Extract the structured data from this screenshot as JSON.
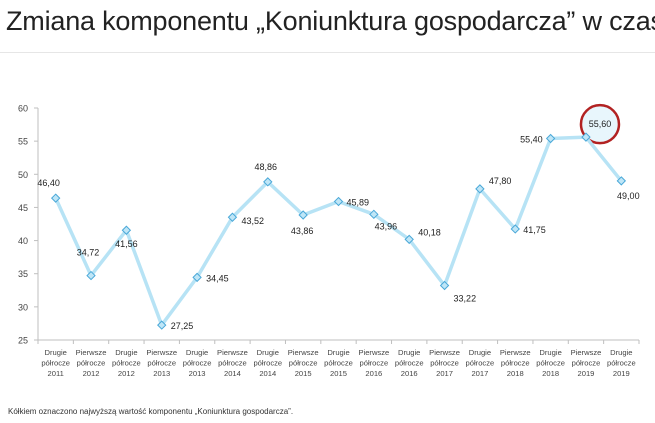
{
  "title": "Zmiana komponentu „Koniunktura gospodarcza” w czasie",
  "footnote": "Kółkiem oznaczono najwyższą wartość komponentu „Koniunktura gospodarcza”.",
  "chart_data": {
    "type": "line",
    "title": "",
    "xlabel": "",
    "ylabel": "",
    "ylim": [
      25,
      60
    ],
    "yticks": [
      "25",
      "30",
      "35",
      "40",
      "45",
      "50",
      "55",
      "60"
    ],
    "grid": false,
    "categories": [
      [
        "Drugie",
        "półrocze",
        "2011"
      ],
      [
        "Pierwsze",
        "półrocze",
        "2012"
      ],
      [
        "Drugie",
        "półrocze",
        "2012"
      ],
      [
        "Pierwsze",
        "półrocze",
        "2013"
      ],
      [
        "Drugie",
        "półrocze",
        "2013"
      ],
      [
        "Pierwsze",
        "półrocze",
        "2014"
      ],
      [
        "Drugie",
        "półrocze",
        "2014"
      ],
      [
        "Pierwsze",
        "półrocze",
        "2015"
      ],
      [
        "Drugie",
        "półrocze",
        "2015"
      ],
      [
        "Pierwsze",
        "półrocze",
        "2016"
      ],
      [
        "Drugie",
        "półrocze",
        "2016"
      ],
      [
        "Pierwsze",
        "półrocze",
        "2017"
      ],
      [
        "Drugie",
        "półrocze",
        "2017"
      ],
      [
        "Pierwsze",
        "półrocze",
        "2018"
      ],
      [
        "Drugie",
        "półrocze",
        "2018"
      ],
      [
        "Pierwsze",
        "półrocze",
        "2019"
      ],
      [
        "Drugie",
        "półrocze",
        "2019"
      ]
    ],
    "values": [
      46.4,
      34.72,
      41.56,
      27.25,
      34.45,
      43.52,
      48.86,
      43.86,
      45.89,
      43.96,
      40.18,
      33.22,
      47.8,
      41.75,
      55.4,
      55.6,
      49.0
    ],
    "data_labels": [
      "46,40",
      "34,72",
      "41,56",
      "27,25",
      "34,45",
      "43,52",
      "48,86",
      "43,86",
      "45,89",
      "43,96",
      "40,18",
      "33,22",
      "47,80",
      "41,75",
      "55,40",
      "55,60",
      "49,00"
    ],
    "highlighted_index": 15,
    "colors": {
      "line": "#b7e3f5",
      "marker_fill": "#bfe6f7",
      "marker_stroke": "#4aa8d8",
      "highlight_circle": "#b22222",
      "axis": "#bfbfbf"
    }
  }
}
